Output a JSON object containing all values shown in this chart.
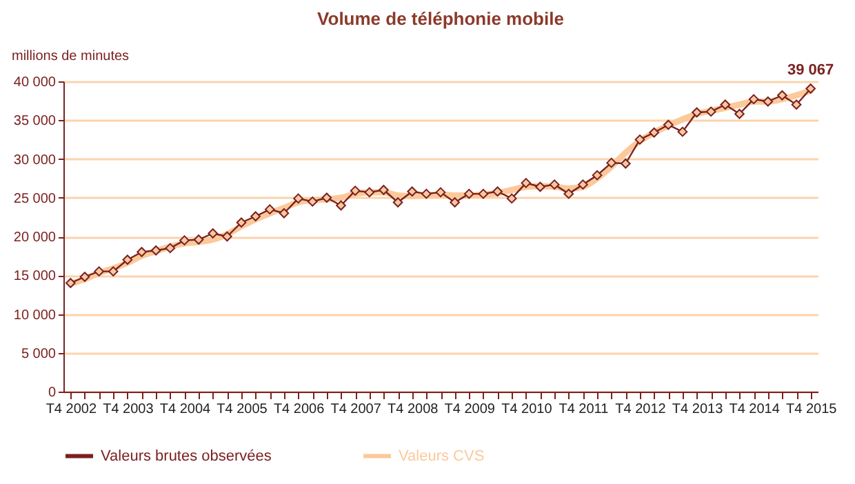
{
  "chart_data": {
    "type": "line",
    "title": "Volume de téléphonie mobile",
    "ylabel": "millions de minutes",
    "categories": [
      "T4 2002",
      null,
      null,
      null,
      "T4 2003",
      null,
      null,
      null,
      "T4 2004",
      null,
      null,
      null,
      "T4 2005",
      null,
      null,
      null,
      "T4 2006",
      null,
      null,
      null,
      "T4 2007",
      null,
      null,
      null,
      "T4 2008",
      null,
      null,
      null,
      "T4 2009",
      null,
      null,
      null,
      "T4 2010",
      null,
      null,
      null,
      "T4 2011",
      null,
      null,
      null,
      "T4 2012",
      null,
      null,
      null,
      "T4 2013",
      null,
      null,
      null,
      "T4 2014",
      null,
      null,
      null,
      "T4 2015"
    ],
    "series": [
      {
        "name": "Valeurs brutes observées",
        "color": "#7b2020",
        "values": [
          14000,
          14800,
          15500,
          15500,
          17000,
          18000,
          18200,
          18500,
          19500,
          19600,
          20400,
          20000,
          21800,
          22600,
          23500,
          23000,
          24900,
          24500,
          25000,
          24000,
          25900,
          25700,
          26000,
          24400,
          25800,
          25500,
          25700,
          24400,
          25500,
          25500,
          25800,
          24900,
          26900,
          26400,
          26700,
          25500,
          26700,
          27900,
          29500,
          29400,
          32500,
          33400,
          34400,
          33500,
          36000,
          36100,
          37000,
          35800,
          37700,
          37400,
          38200,
          37000,
          39067
        ],
        "value_labels": [
          null,
          null,
          null,
          null,
          null,
          null,
          null,
          null,
          null,
          null,
          null,
          null,
          null,
          null,
          null,
          null,
          null,
          null,
          null,
          null,
          null,
          null,
          null,
          null,
          null,
          null,
          null,
          null,
          null,
          null,
          null,
          null,
          null,
          null,
          null,
          null,
          null,
          null,
          null,
          null,
          null,
          null,
          null,
          null,
          null,
          null,
          null,
          null,
          null,
          null,
          null,
          null,
          "39 067"
        ]
      },
      {
        "name": "Valeurs CVS",
        "color": "#fcc99a",
        "marker": "none",
        "values": [
          13900,
          14500,
          15300,
          15900,
          16600,
          17500,
          18100,
          18700,
          19100,
          19300,
          19600,
          20300,
          21300,
          22200,
          23000,
          23700,
          24400,
          24700,
          24800,
          25000,
          25500,
          25700,
          25700,
          25300,
          25200,
          25300,
          25400,
          25300,
          25300,
          25400,
          25600,
          26000,
          26400,
          26500,
          26400,
          26200,
          26400,
          27500,
          29000,
          30800,
          32300,
          33400,
          34300,
          35100,
          35800,
          36200,
          36600,
          37000,
          37400,
          37400,
          37700,
          38200,
          38800
        ]
      }
    ],
    "ylim": [
      0,
      40000
    ],
    "yticks": [
      {
        "value": 0,
        "label": "0"
      },
      {
        "value": 5000,
        "label": "5 000"
      },
      {
        "value": 10000,
        "label": "10 000"
      },
      {
        "value": 15000,
        "label": "15 000"
      },
      {
        "value": 20000,
        "label": "20 000"
      },
      {
        "value": 25000,
        "label": "25 000"
      },
      {
        "value": 30000,
        "label": "30 000"
      },
      {
        "value": 35000,
        "label": "35 000"
      },
      {
        "value": 40000,
        "label": "40 000"
      }
    ],
    "grid": "y",
    "legend": "bottom",
    "marker": "diamond"
  }
}
